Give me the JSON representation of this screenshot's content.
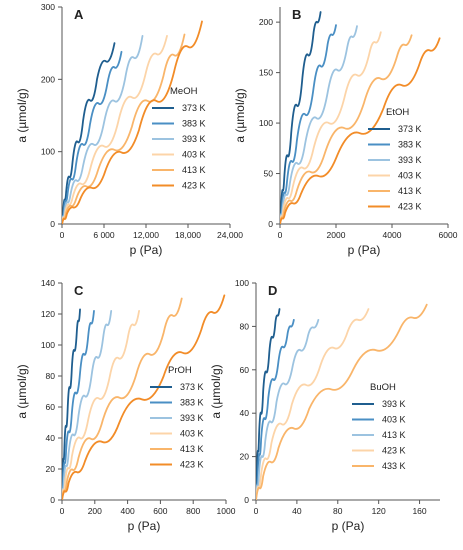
{
  "colors": {
    "c1": "#1f5e8f",
    "c2": "#4a8fc4",
    "c3": "#9cc3e0",
    "c4": "#fcd4a8",
    "c5": "#f9b56a",
    "c6": "#f28c28",
    "axis": "#555555"
  },
  "chart_data": [
    {
      "type": "line",
      "panel_label": "A",
      "legend_title": "MeOH",
      "xlabel": "p (Pa)",
      "ylabel": "a (µmol/g)",
      "xlim": [
        0,
        24000
      ],
      "ylim": [
        0,
        300
      ],
      "xticks": [
        0,
        6000,
        12000,
        18000,
        24000
      ],
      "xtick_labels": [
        "0",
        "6 000",
        "12,000",
        "18,000",
        "24,000"
      ],
      "yticks": [
        0,
        100,
        200,
        300
      ],
      "ytick_labels": [
        "0",
        "100",
        "200",
        "300"
      ],
      "series": [
        {
          "name": "373 K",
          "color_key": "c1",
          "x": [
            0,
            200,
            600,
            1500,
            3000,
            5000,
            7500
          ],
          "y": [
            0,
            22,
            45,
            85,
            142,
            200,
            250
          ]
        },
        {
          "name": "383 K",
          "color_key": "c2",
          "x": [
            0,
            300,
            800,
            2000,
            4000,
            6500,
            8500
          ],
          "y": [
            0,
            22,
            42,
            82,
            138,
            195,
            238
          ]
        },
        {
          "name": "393 K",
          "color_key": "c3",
          "x": [
            0,
            400,
            1200,
            3000,
            6000,
            9000,
            11500
          ],
          "y": [
            0,
            20,
            40,
            80,
            140,
            200,
            260
          ]
        },
        {
          "name": "403 K",
          "color_key": "c4",
          "x": [
            0,
            500,
            1500,
            4000,
            8000,
            12000,
            15000
          ],
          "y": [
            0,
            18,
            36,
            75,
            140,
            210,
            260
          ]
        },
        {
          "name": "413 K",
          "color_key": "c5",
          "x": [
            0,
            600,
            2000,
            5000,
            10000,
            14500,
            17500
          ],
          "y": [
            0,
            16,
            34,
            70,
            135,
            205,
            262
          ]
        },
        {
          "name": "423 K",
          "color_key": "c6",
          "x": [
            0,
            700,
            2500,
            6000,
            11000,
            16000,
            20000
          ],
          "y": [
            0,
            14,
            32,
            68,
            130,
            210,
            280
          ]
        }
      ]
    },
    {
      "type": "line",
      "panel_label": "B",
      "legend_title": "EtOH",
      "xlabel": "p (Pa)",
      "ylabel": "a (µmol/g)",
      "xlim": [
        0,
        6000
      ],
      "ylim": [
        0,
        215
      ],
      "xticks": [
        0,
        2000,
        4000,
        6000
      ],
      "xtick_labels": [
        "0",
        "2000",
        "4000",
        "6000"
      ],
      "yticks": [
        0,
        50,
        100,
        150,
        200
      ],
      "ytick_labels": [
        "0",
        "50",
        "100",
        "150",
        "200"
      ],
      "series": [
        {
          "name": "373 K",
          "color_key": "c1",
          "x": [
            0,
            50,
            150,
            400,
            800,
            1200,
            1450
          ],
          "y": [
            0,
            22,
            45,
            90,
            145,
            190,
            210
          ]
        },
        {
          "name": "383 K",
          "color_key": "c2",
          "x": [
            0,
            80,
            250,
            600,
            1200,
            1700,
            2000
          ],
          "y": [
            0,
            20,
            42,
            82,
            135,
            178,
            197
          ]
        },
        {
          "name": "393 K",
          "color_key": "c3",
          "x": [
            0,
            100,
            350,
            900,
            1700,
            2400,
            2750
          ],
          "y": [
            0,
            18,
            40,
            80,
            130,
            175,
            196
          ]
        },
        {
          "name": "403 K",
          "color_key": "c4",
          "x": [
            0,
            120,
            450,
            1200,
            2300,
            3200,
            3600
          ],
          "y": [
            0,
            15,
            36,
            75,
            125,
            170,
            190
          ]
        },
        {
          "name": "413 K",
          "color_key": "c5",
          "x": [
            0,
            150,
            600,
            1600,
            3000,
            4200,
            4700
          ],
          "y": [
            0,
            13,
            33,
            70,
            120,
            168,
            187
          ]
        },
        {
          "name": "423 K",
          "color_key": "c6",
          "x": [
            0,
            180,
            750,
            2000,
            3700,
            5000,
            5700
          ],
          "y": [
            0,
            11,
            30,
            65,
            115,
            160,
            184
          ]
        }
      ]
    },
    {
      "type": "line",
      "panel_label": "C",
      "legend_title": "PrOH",
      "xlabel": "p (Pa)",
      "ylabel": "a (µmol/g)",
      "xlim": [
        0,
        1000
      ],
      "ylim": [
        0,
        140
      ],
      "xticks": [
        0,
        200,
        400,
        600,
        800,
        1000
      ],
      "xtick_labels": [
        "0",
        "200",
        "400",
        "600",
        "800",
        "1000"
      ],
      "yticks": [
        0,
        20,
        40,
        60,
        80,
        100,
        120,
        140
      ],
      "ytick_labels": [
        "0",
        "20",
        "40",
        "60",
        "80",
        "100",
        "120",
        "140"
      ],
      "series": [
        {
          "name": "373 K",
          "color_key": "c1",
          "x": [
            0,
            5,
            15,
            35,
            60,
            90,
            110
          ],
          "y": [
            0,
            18,
            35,
            60,
            85,
            108,
            123
          ]
        },
        {
          "name": "383 K",
          "color_key": "c2",
          "x": [
            0,
            8,
            25,
            60,
            110,
            160,
            195
          ],
          "y": [
            0,
            16,
            32,
            56,
            82,
            106,
            122
          ]
        },
        {
          "name": "393 K",
          "color_key": "c3",
          "x": [
            0,
            12,
            40,
            100,
            180,
            250,
            300
          ],
          "y": [
            0,
            14,
            30,
            54,
            80,
            104,
            122
          ]
        },
        {
          "name": "403 K",
          "color_key": "c4",
          "x": [
            0,
            20,
            60,
            160,
            290,
            400,
            470
          ],
          "y": [
            0,
            13,
            28,
            52,
            79,
            104,
            122
          ]
        },
        {
          "name": "413 K",
          "color_key": "c5",
          "x": [
            0,
            30,
            100,
            250,
            450,
            620,
            730
          ],
          "y": [
            0,
            12,
            27,
            52,
            80,
            108,
            130
          ]
        },
        {
          "name": "423 K",
          "color_key": "c6",
          "x": [
            0,
            40,
            140,
            350,
            620,
            850,
            990
          ],
          "y": [
            0,
            11,
            25,
            50,
            80,
            110,
            132
          ]
        }
      ]
    },
    {
      "type": "line",
      "panel_label": "D",
      "legend_title": "BuOH",
      "xlabel": "p (Pa)",
      "ylabel": "a (µmol/g)",
      "xlim": [
        0,
        180
      ],
      "ylim": [
        0,
        100
      ],
      "xticks": [
        0,
        40,
        80,
        120,
        160
      ],
      "xtick_labels": [
        "0",
        "40",
        "80",
        "120",
        "160"
      ],
      "yticks": [
        0,
        20,
        40,
        60,
        80,
        100
      ],
      "ytick_labels": [
        "0",
        "20",
        "40",
        "60",
        "80",
        "100"
      ],
      "series": [
        {
          "name": "393 K",
          "color_key": "c1",
          "x": [
            0,
            1,
            3,
            7,
            13,
            19,
            23
          ],
          "y": [
            0,
            15,
            30,
            50,
            68,
            82,
            88
          ]
        },
        {
          "name": "403 K",
          "color_key": "c2",
          "x": [
            0,
            2,
            5,
            12,
            22,
            31,
            37
          ],
          "y": [
            0,
            14,
            28,
            47,
            64,
            77,
            83
          ]
        },
        {
          "name": "413 K",
          "color_key": "c3",
          "x": [
            0,
            3,
            9,
            20,
            36,
            51,
            61
          ],
          "y": [
            0,
            13,
            27,
            45,
            62,
            76,
            83
          ]
        },
        {
          "name": "423 K",
          "color_key": "c4",
          "x": [
            0,
            5,
            15,
            35,
            63,
            90,
            110
          ],
          "y": [
            0,
            12,
            26,
            44,
            62,
            78,
            88
          ]
        },
        {
          "name": "433 K",
          "color_key": "c5",
          "x": [
            0,
            7,
            22,
            52,
            95,
            140,
            167
          ],
          "y": [
            0,
            11,
            24,
            42,
            60,
            78,
            90
          ]
        }
      ]
    }
  ]
}
